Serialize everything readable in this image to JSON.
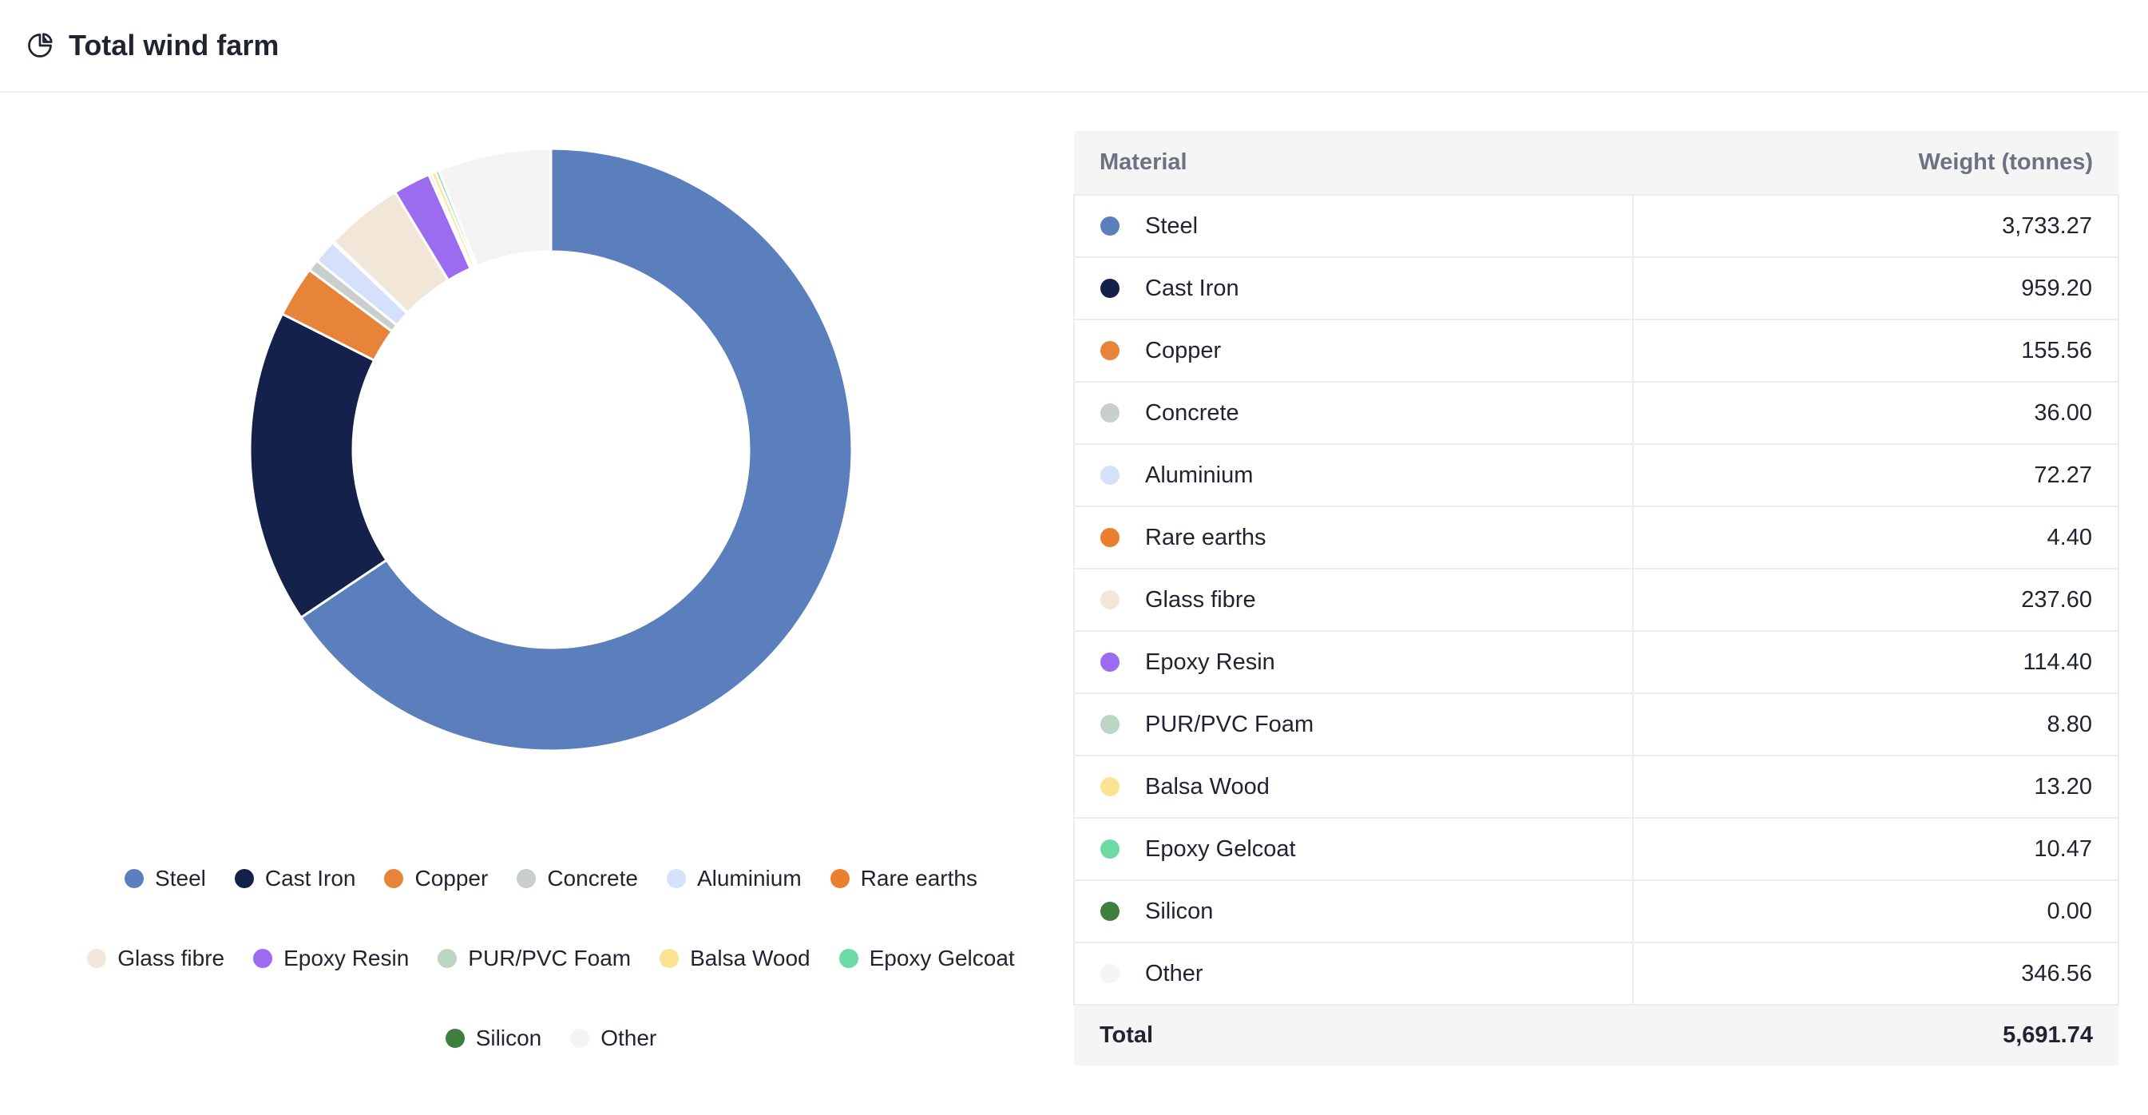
{
  "header": {
    "title": "Total wind farm",
    "icon": "pie-chart-icon"
  },
  "table": {
    "col_material": "Material",
    "col_weight": "Weight (tonnes)",
    "total_label": "Total",
    "total_value": "5,691.74",
    "rows": [
      {
        "name": "Steel",
        "value": "3,733.27",
        "color": "#5b7fbd"
      },
      {
        "name": "Cast Iron",
        "value": "959.20",
        "color": "#14214b"
      },
      {
        "name": "Copper",
        "value": "155.56",
        "color": "#e8833a"
      },
      {
        "name": "Concrete",
        "value": "36.00",
        "color": "#c9cfcc"
      },
      {
        "name": "Aluminium",
        "value": "72.27",
        "color": "#d5e1fb"
      },
      {
        "name": "Rare earths",
        "value": "4.40",
        "color": "#ea7f2d"
      },
      {
        "name": "Glass fibre",
        "value": "237.60",
        "color": "#f1e6d8"
      },
      {
        "name": "Epoxy Resin",
        "value": "114.40",
        "color": "#9b6cf0"
      },
      {
        "name": "PUR/PVC Foam",
        "value": "8.80",
        "color": "#bcd6c6"
      },
      {
        "name": "Balsa Wood",
        "value": "13.20",
        "color": "#fae392"
      },
      {
        "name": "Epoxy Gelcoat",
        "value": "10.47",
        "color": "#6cdaa2"
      },
      {
        "name": "Silicon",
        "value": "0.00",
        "color": "#3f7f3e"
      },
      {
        "name": "Other",
        "value": "346.56",
        "color": "#f4f4f4"
      }
    ]
  },
  "chart_data": {
    "type": "pie",
    "variant": "donut",
    "categories": [
      "Steel",
      "Cast Iron",
      "Copper",
      "Concrete",
      "Aluminium",
      "Rare earths",
      "Glass fibre",
      "Epoxy Resin",
      "PUR/PVC Foam",
      "Balsa Wood",
      "Epoxy Gelcoat",
      "Silicon",
      "Other"
    ],
    "values": [
      3733.27,
      959.2,
      155.56,
      36.0,
      72.27,
      4.4,
      237.6,
      114.4,
      8.8,
      13.2,
      10.47,
      0.0,
      346.56
    ],
    "colors": [
      "#5b7fbd",
      "#14214b",
      "#e8833a",
      "#c9cfcc",
      "#d5e1fb",
      "#ea7f2d",
      "#f1e6d8",
      "#9b6cf0",
      "#bcd6c6",
      "#fae392",
      "#6cdaa2",
      "#3f7f3e",
      "#f4f4f4"
    ],
    "unit": "tonnes",
    "legend_position": "bottom"
  }
}
